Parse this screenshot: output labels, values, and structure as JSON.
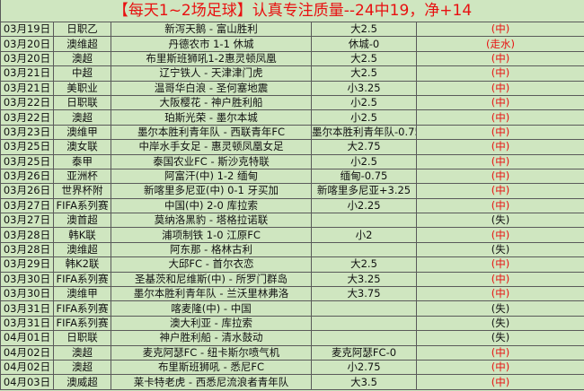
{
  "title": "【每天1~2场足球】认真专注质量--24中19，净+14",
  "colors": {
    "background": "#cfe6c0",
    "accent_red": "#e81010"
  },
  "rows": [
    {
      "date": "03月19日",
      "league": "日职乙",
      "match": "新泻天鹅 - 富山胜利",
      "pick": "大2.5",
      "result": "(中)"
    },
    {
      "date": "03月20日",
      "league": "澳维超",
      "match": "丹德农市 1-1 休城",
      "pick": "休城-0",
      "result": "(走水)"
    },
    {
      "date": "03月20日",
      "league": "澳超",
      "match": "布里斯班狮吼1-2惠灵顿凤凰",
      "pick": "大2.5",
      "result": "(中)"
    },
    {
      "date": "03月21日",
      "league": "中超",
      "match": "辽宁铁人 - 天津津门虎",
      "pick": "大2.5",
      "result": "(中)"
    },
    {
      "date": "03月21日",
      "league": "美职业",
      "match": "温哥华白浪 - 圣何塞地震",
      "pick": "小3.25",
      "result": "(中)"
    },
    {
      "date": "03月22日",
      "league": "日职联",
      "match": "大阪樱花 - 神户胜利船",
      "pick": "小2.5",
      "result": "(中)"
    },
    {
      "date": "03月22日",
      "league": "澳超",
      "match": "珀斯光荣 - 墨尔本城",
      "pick": "小2.5",
      "result": "(中)"
    },
    {
      "date": "03月23日",
      "league": "澳维甲",
      "match": "墨尔本胜利青年队 - 西联青年FC",
      "pick": "墨尔本胜利青年队-0.75",
      "result": "(中)"
    },
    {
      "date": "03月25日",
      "league": "澳女联",
      "match": "中岸水手女足 - 惠灵顿凤凰女足",
      "pick": "大2.75",
      "result": "(中)"
    },
    {
      "date": "03月25日",
      "league": "泰甲",
      "match": "泰国农业FC - 斯沙克特联",
      "pick": "小2.5",
      "result": "(中)"
    },
    {
      "date": "03月26日",
      "league": "亚洲杯",
      "match": "阿富汗(中) 1-2 缅甸",
      "pick": "缅甸-0.75",
      "result": "(中)"
    },
    {
      "date": "03月26日",
      "league": "世界杯附",
      "match": "新喀里多尼亚(中) 0-1 牙买加",
      "pick": "新喀里多尼亚+3.25",
      "result": "(中)"
    },
    {
      "date": "03月27日",
      "league": "FIFA系列赛",
      "match": "中国(中) 2-0 库拉索",
      "pick": "小2.25",
      "result": "(中)"
    },
    {
      "date": "03月27日",
      "league": "澳首超",
      "match": "莫纳洛黑豹 - 塔格拉诺联",
      "pick": "",
      "result": "(失)"
    },
    {
      "date": "03月28日",
      "league": "韩K联",
      "match": "浦项制铁 1-0 江原FC",
      "pick": "小2",
      "result": "(中)"
    },
    {
      "date": "03月28日",
      "league": "澳维超",
      "match": "阿东那 - 格林古利",
      "pick": "",
      "result": "(失)"
    },
    {
      "date": "03月29日",
      "league": "韩K2联",
      "match": "大邱FC - 首尔衣恋",
      "pick": "大2.5",
      "result": "(中)"
    },
    {
      "date": "03月30日",
      "league": "FIFA系列赛",
      "match": "圣基茨和尼维斯(中) - 所罗门群岛",
      "pick": "大3.25",
      "result": "(中)"
    },
    {
      "date": "03月30日",
      "league": "澳维甲",
      "match": "墨尔本胜利青年队 - 兰沃里林弗洛",
      "pick": "大3.75",
      "result": "(中)"
    },
    {
      "date": "03月31日",
      "league": "FIFA系列赛",
      "match": "喀麦隆(中) - 中国",
      "pick": "",
      "result": "(失)"
    },
    {
      "date": "03月31日",
      "league": "FIFA系列赛",
      "match": "澳大利亚 - 库拉索",
      "pick": "",
      "result": "(失)"
    },
    {
      "date": "04月01日",
      "league": "日职联",
      "match": "神户胜利船 - 清水鼓动",
      "pick": "",
      "result": "(失)"
    },
    {
      "date": "04月02日",
      "league": "澳超",
      "match": "麦克阿瑟FC - 纽卡斯尔喷气机",
      "pick": "麦克阿瑟FC-0",
      "result": "(中)"
    },
    {
      "date": "04月02日",
      "league": "澳超",
      "match": "布里斯班狮吼 - 悉尼FC",
      "pick": "小2.75",
      "result": "(中)"
    },
    {
      "date": "04月03日",
      "league": "澳威超",
      "match": "莱卡特老虎 - 西悉尼流浪者青年队",
      "pick": "大3.5",
      "result": "(中)"
    }
  ]
}
